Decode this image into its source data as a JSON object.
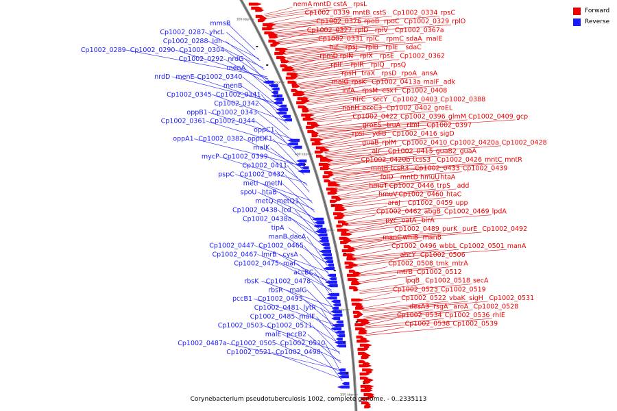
{
  "legend": {
    "forward_label": "Forward",
    "reverse_label": "Reverse",
    "forward_color": "#ee0000",
    "reverse_color": "#1a1aff"
  },
  "caption": "Corynebacterium pseudotuberculosis 1002, complete genome. - 0..2335113",
  "ticks": [
    "300 kbp",
    "350 kbp",
    "400 kbp",
    "450 kbp",
    "500 kbp",
    "550 kbp"
  ],
  "forward_genes": [
    "nemA",
    "mntD",
    "cstA",
    "rpsL",
    "Cp1002_0339",
    "mntB",
    "cstS",
    "Cp1002_0334",
    "rpsC",
    "Cp1002_0376",
    "rpoB",
    "rpoC",
    "Cp1002_0329",
    "rplO",
    "Cp1002_0327",
    "rplD",
    "rplV",
    "Cp1002_0367a",
    "Cp1002_0331",
    "rplC",
    "rpmC",
    "sdaA",
    "malE",
    "tuf",
    "rpsJ",
    "rplB",
    "rplE",
    "sdaC",
    "rpmD",
    "rplN",
    "rplX",
    "rpsE",
    "Cp1002_0362",
    "rplF",
    "rplR",
    "rplQ",
    "rpsQ",
    "rpsH",
    "traX",
    "rpsD",
    "rpoA",
    "ansA",
    "malG",
    "rpsK",
    "Cp1002_0413a",
    "malF",
    "adk",
    "infA",
    "rpsM",
    "esxT",
    "Cp1002_0408",
    "nirC",
    "secY",
    "Cp1002_0403",
    "Cp1002_0388",
    "nanH",
    "eccC3",
    "Cp1002_0402",
    "groEL",
    "Cp1002_0422",
    "Cp1002_0396",
    "glmM",
    "Cp1002_0409",
    "gcp",
    "groES",
    "truA",
    "rimI",
    "Cp1002_0397",
    "rpsI",
    "ydiB",
    "Cp1002_0416",
    "sigD",
    "guaB",
    "rplM",
    "Cp1002_0410",
    "Cp1002_0420a",
    "Cp1002_0428",
    "alr",
    "Cp1002_0415",
    "guaB2",
    "guaA",
    "Cp1002_0420b",
    "tcsS3",
    "Cp1002_0426",
    "mntC",
    "mntR",
    "mntB",
    "tcsR3",
    "Cp1002_0433",
    "Cp1002_0439",
    "folD",
    "mntD",
    "hmuU",
    "htaA",
    "hmuT",
    "Cp1002_0446",
    "trpS",
    "add",
    "hmuV",
    "Cp1002_0460",
    "htaC",
    "araJ",
    "Cp1002_0459",
    "upp",
    "Cp1002_0462",
    "abgB",
    "Cp1002_0469",
    "lpdA",
    "pyc",
    "oatA",
    "birA",
    "Cp1002_0489",
    "purK",
    "purE",
    "Cp1002_0492",
    "manC",
    "whiB",
    "manB",
    "Cp1002_0496",
    "wbbL",
    "Cp1002_0501",
    "manA",
    "ahcY",
    "Cp1002_0506",
    "Cp1002_0508",
    "tmk",
    "mtrA",
    "mtrB",
    "Cp1002_0512",
    "lpqB",
    "Cp1002_0518",
    "secA",
    "Cp1002_0523",
    "Cp1002_0519",
    "Cp1002_0522",
    "vbaK",
    "sigH",
    "Cp1002_0531",
    "desA3",
    "rsgA",
    "aroA",
    "Cp1002_0528",
    "Cp1002_0534",
    "Cp1002_0536",
    "rhlE",
    "Cp1002_0538",
    "Cp1002_0539"
  ],
  "reverse_genes": [
    "mmsB",
    "Cp1002_0287",
    "yhcL",
    "Cp1002_0288",
    "ldh",
    "Cp1002_0289",
    "Cp1002_0290",
    "Cp1002_0304",
    "Cp1002_0292",
    "nrdG",
    "menA",
    "nrdD",
    "menE",
    "Cp1002_0340",
    "menB",
    "Cp1002_0345",
    "Cp1002_0341",
    "Cp1002_0342",
    "oppB1",
    "Cp1002_0343",
    "Cp1002_0361",
    "Cp1002_0344",
    "oppC1",
    "oppA1",
    "Cp1002_0382",
    "oppDF1",
    "malK",
    "mycP",
    "Cp1002_0399",
    "Cp1002_0411",
    "pspC",
    "Cp1002_0432",
    "metI",
    "metN",
    "spoU",
    "htaB",
    "metQ",
    "metQ1",
    "Cp1002_0438",
    "icd",
    "Cp1002_0438a",
    "tipA",
    "manB",
    "dacA",
    "Cp1002_0447",
    "Cp1002_0465",
    "Cp1002_0467",
    "lmrB",
    "cysA",
    "Cp1002_0475",
    "maf",
    "accBC",
    "rbsK",
    "Cp1002_0478",
    "rbsR",
    "malG",
    "pccB1",
    "Cp1002_0493",
    "Cp1002_0481",
    "lytR",
    "Cp1002_0485",
    "malF",
    "Cp1002_0503",
    "Cp1002_0511",
    "malE",
    "pccB2",
    "Cp1002_0487a",
    "Cp1002_0505",
    "Cp1002_0510",
    "Cp1002_0521",
    "Cp1002_0498"
  ]
}
